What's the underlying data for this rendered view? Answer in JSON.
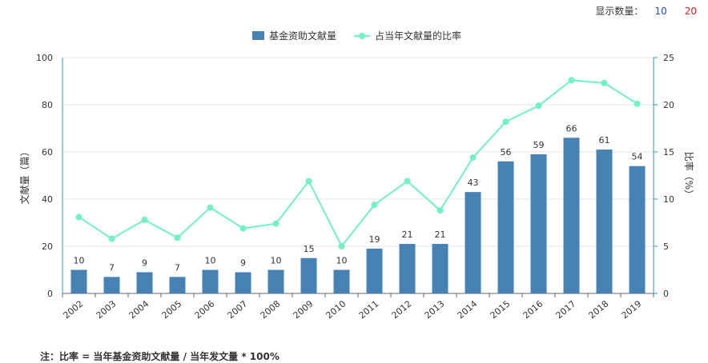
{
  "controls": {
    "display_count_label": "显示数量：",
    "option_10": "10",
    "option_20": "20"
  },
  "note": "注：比率 = 当年基金资助文献量 / 当年发文量 * 100%",
  "colors": {
    "bar": "#4682b4",
    "line": "#6ff2c6",
    "axis_right": "#2a9bb0",
    "grid": "#e6e6e6"
  },
  "chart_data": {
    "type": "bar",
    "categories": [
      "2002",
      "2003",
      "2004",
      "2005",
      "2006",
      "2007",
      "2008",
      "2009",
      "2010",
      "2011",
      "2012",
      "2013",
      "2014",
      "2015",
      "2016",
      "2017",
      "2018",
      "2019"
    ],
    "series": [
      {
        "name": "基金资助文献量",
        "type": "bar",
        "axis": "left",
        "values": [
          10,
          7,
          9,
          7,
          10,
          9,
          10,
          15,
          10,
          19,
          21,
          21,
          43,
          56,
          59,
          66,
          61,
          54
        ]
      },
      {
        "name": "占当年文献量的比率",
        "type": "line",
        "axis": "right",
        "values": [
          8.1,
          5.8,
          7.8,
          5.9,
          9.1,
          6.9,
          7.4,
          11.9,
          5.0,
          9.4,
          11.9,
          8.8,
          14.4,
          18.2,
          19.9,
          22.6,
          22.3,
          20.1
        ]
      }
    ],
    "ylabel": "文献量（篇）",
    "ylabel_right": "比率（%）",
    "ylim": [
      0,
      100
    ],
    "yticks": [
      0,
      20,
      40,
      60,
      80,
      100
    ],
    "ylim_right": [
      0,
      25
    ],
    "yticks_right": [
      0,
      5,
      10,
      15,
      20,
      25
    ],
    "grid": true,
    "legend": "top-center"
  }
}
